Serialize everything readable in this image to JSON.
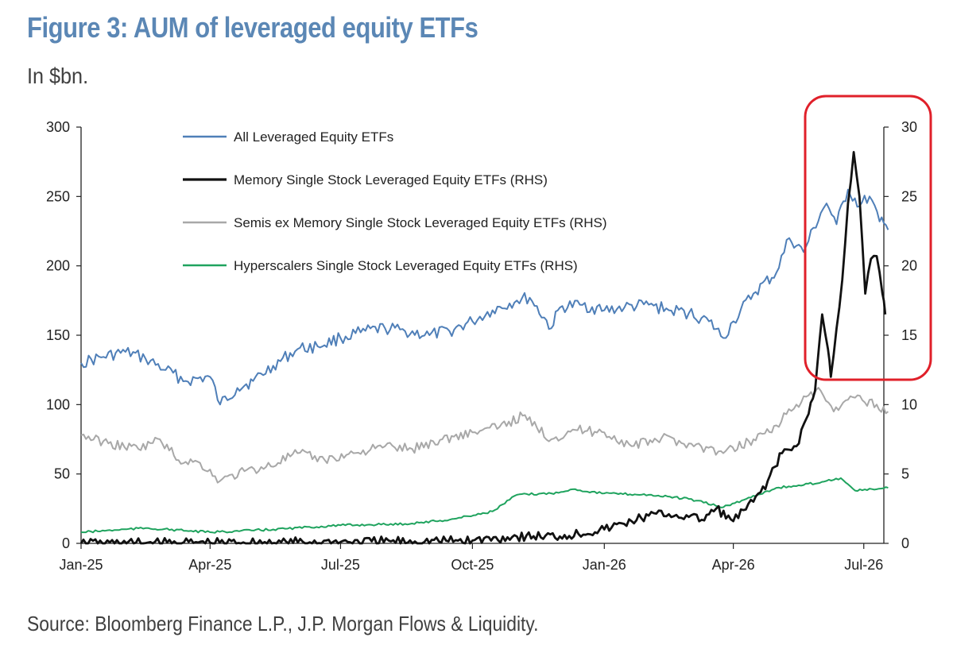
{
  "header": {
    "title": "Figure 3: AUM of leveraged equity ETFs",
    "subtitle": "In $bn."
  },
  "footer": {
    "source": "Source: Bloomberg Finance L.P., J.P. Morgan Flows & Liquidity."
  },
  "highlight": {
    "color": "#e0202a",
    "target": "Memory Single Stock Leveraged Equity ETFs (RHS) peak region"
  },
  "chart_data": {
    "type": "line",
    "title": "Figure 3: AUM of leveraged equity ETFs",
    "ylabel": "In $bn.",
    "x_ticks": [
      "Jan-25",
      "Apr-25",
      "Jul-25",
      "Oct-25",
      "Jan-26",
      "Apr-26",
      "Jul-26"
    ],
    "x_range": [
      "2025-01-01",
      "2026-07-15"
    ],
    "y_left": {
      "min": 0,
      "max": 300,
      "ticks": [
        "0",
        "50",
        "100",
        "150",
        "200",
        "250",
        "300"
      ]
    },
    "y_right": {
      "min": 0,
      "max": 30,
      "ticks": [
        "0",
        "5",
        "10",
        "15",
        "20",
        "25",
        "30"
      ]
    },
    "legend_position": "top-left",
    "grid": false,
    "series": [
      {
        "name": "All Leveraged Equity ETFs",
        "axis": "left",
        "color": "#4f7fb8",
        "points": [
          [
            "2025-01-01",
            130
          ],
          [
            "2025-01-15",
            134
          ],
          [
            "2025-02-01",
            138
          ],
          [
            "2025-02-15",
            133
          ],
          [
            "2025-03-01",
            125
          ],
          [
            "2025-03-15",
            117
          ],
          [
            "2025-04-01",
            120
          ],
          [
            "2025-04-08",
            100
          ],
          [
            "2025-04-20",
            112
          ],
          [
            "2025-05-01",
            117
          ],
          [
            "2025-05-15",
            128
          ],
          [
            "2025-06-01",
            140
          ],
          [
            "2025-06-15",
            142
          ],
          [
            "2025-07-01",
            148
          ],
          [
            "2025-07-15",
            152
          ],
          [
            "2025-08-01",
            155
          ],
          [
            "2025-08-15",
            153
          ],
          [
            "2025-09-01",
            150
          ],
          [
            "2025-09-15",
            153
          ],
          [
            "2025-10-01",
            160
          ],
          [
            "2025-10-15",
            168
          ],
          [
            "2025-11-01",
            175
          ],
          [
            "2025-11-10",
            177
          ],
          [
            "2025-11-25",
            155
          ],
          [
            "2025-12-01",
            170
          ],
          [
            "2025-12-15",
            172
          ],
          [
            "2026-01-01",
            168
          ],
          [
            "2026-01-15",
            170
          ],
          [
            "2026-02-01",
            172
          ],
          [
            "2026-02-15",
            168
          ],
          [
            "2026-03-01",
            166
          ],
          [
            "2026-03-15",
            160
          ],
          [
            "2026-03-25",
            148
          ],
          [
            "2026-04-01",
            160
          ],
          [
            "2026-04-15",
            180
          ],
          [
            "2026-05-01",
            195
          ],
          [
            "2026-05-10",
            220
          ],
          [
            "2026-05-20",
            210
          ],
          [
            "2026-06-01",
            238
          ],
          [
            "2026-06-05",
            245
          ],
          [
            "2026-06-12",
            230
          ],
          [
            "2026-06-20",
            255
          ],
          [
            "2026-06-28",
            243
          ],
          [
            "2026-07-05",
            250
          ],
          [
            "2026-07-12",
            232
          ],
          [
            "2026-07-18",
            226
          ]
        ]
      },
      {
        "name": "Memory Single Stock Leveraged Equity ETFs (RHS)",
        "axis": "right",
        "color": "#111111",
        "points": [
          [
            "2025-01-01",
            0.0
          ],
          [
            "2025-04-01",
            0.05
          ],
          [
            "2025-07-01",
            0.1
          ],
          [
            "2025-10-01",
            0.2
          ],
          [
            "2025-11-01",
            0.5
          ],
          [
            "2025-12-01",
            0.5
          ],
          [
            "2026-01-01",
            1.0
          ],
          [
            "2026-01-20",
            1.6
          ],
          [
            "2026-02-01",
            2.0
          ],
          [
            "2026-02-15",
            2.1
          ],
          [
            "2026-03-01",
            1.9
          ],
          [
            "2026-03-10",
            1.7
          ],
          [
            "2026-03-20",
            2.5
          ],
          [
            "2026-04-01",
            1.6
          ],
          [
            "2026-04-15",
            3.0
          ],
          [
            "2026-04-25",
            4.5
          ],
          [
            "2026-05-05",
            6.5
          ],
          [
            "2026-05-15",
            7.0
          ],
          [
            "2026-05-22",
            9.0
          ],
          [
            "2026-05-28",
            11.0
          ],
          [
            "2026-06-02",
            16.5
          ],
          [
            "2026-06-06",
            14.0
          ],
          [
            "2026-06-08",
            12.0
          ],
          [
            "2026-06-12",
            15.5
          ],
          [
            "2026-06-16",
            19.0
          ],
          [
            "2026-06-20",
            24.5
          ],
          [
            "2026-06-24",
            28.2
          ],
          [
            "2026-06-28",
            25.0
          ],
          [
            "2026-07-02",
            18.0
          ],
          [
            "2026-07-06",
            20.5
          ],
          [
            "2026-07-10",
            20.7
          ],
          [
            "2026-07-14",
            18.0
          ],
          [
            "2026-07-16",
            16.5
          ]
        ]
      },
      {
        "name": "Semis ex Memory Single Stock Leveraged Equity ETFs (RHS)",
        "axis": "right",
        "color": "#a8a8a8",
        "points": [
          [
            "2025-01-01",
            7.8
          ],
          [
            "2025-01-20",
            7.2
          ],
          [
            "2025-02-10",
            6.8
          ],
          [
            "2025-02-25",
            7.5
          ],
          [
            "2025-03-10",
            6.0
          ],
          [
            "2025-03-25",
            5.8
          ],
          [
            "2025-04-08",
            4.5
          ],
          [
            "2025-04-25",
            5.2
          ],
          [
            "2025-05-10",
            5.5
          ],
          [
            "2025-06-01",
            6.5
          ],
          [
            "2025-06-20",
            6.0
          ],
          [
            "2025-07-10",
            6.5
          ],
          [
            "2025-08-01",
            7.0
          ],
          [
            "2025-08-20",
            6.8
          ],
          [
            "2025-09-10",
            7.5
          ],
          [
            "2025-10-01",
            8.0
          ],
          [
            "2025-10-20",
            8.4
          ],
          [
            "2025-11-05",
            9.2
          ],
          [
            "2025-11-25",
            7.5
          ],
          [
            "2025-12-10",
            8.2
          ],
          [
            "2026-01-01",
            8.0
          ],
          [
            "2026-01-20",
            7.0
          ],
          [
            "2026-02-10",
            7.6
          ],
          [
            "2026-03-01",
            7.2
          ],
          [
            "2026-03-25",
            6.5
          ],
          [
            "2026-04-15",
            7.5
          ],
          [
            "2026-05-01",
            8.5
          ],
          [
            "2026-05-15",
            10.0
          ],
          [
            "2026-06-01",
            11.0
          ],
          [
            "2026-06-10",
            9.5
          ],
          [
            "2026-06-25",
            10.5
          ],
          [
            "2026-07-10",
            10.0
          ],
          [
            "2026-07-18",
            9.5
          ]
        ]
      },
      {
        "name": "Hyperscalers Single Stock Leveraged Equity ETFs (RHS)",
        "axis": "right",
        "color": "#1fa35e",
        "points": [
          [
            "2025-01-01",
            0.8
          ],
          [
            "2025-02-15",
            1.1
          ],
          [
            "2025-04-01",
            0.8
          ],
          [
            "2025-05-15",
            1.0
          ],
          [
            "2025-07-01",
            1.3
          ],
          [
            "2025-08-15",
            1.4
          ],
          [
            "2025-09-15",
            1.7
          ],
          [
            "2025-10-15",
            2.3
          ],
          [
            "2025-11-01",
            3.5
          ],
          [
            "2025-11-25",
            3.6
          ],
          [
            "2025-12-10",
            3.9
          ],
          [
            "2026-01-01",
            3.6
          ],
          [
            "2026-02-01",
            3.5
          ],
          [
            "2026-03-01",
            3.2
          ],
          [
            "2026-03-25",
            2.6
          ],
          [
            "2026-04-10",
            3.2
          ],
          [
            "2026-05-01",
            4.0
          ],
          [
            "2026-05-20",
            4.2
          ],
          [
            "2026-06-05",
            4.5
          ],
          [
            "2026-06-15",
            4.7
          ],
          [
            "2026-06-25",
            3.8
          ],
          [
            "2026-07-10",
            3.9
          ],
          [
            "2026-07-18",
            4.0
          ]
        ]
      }
    ]
  }
}
